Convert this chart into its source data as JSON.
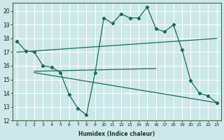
{
  "background_color": "#cce8e8",
  "grid_color": "#b0d4d4",
  "line_color": "#1a6b5a",
  "xlabel": "Humidex (Indice chaleur)",
  "xlim": [
    -0.5,
    23.5
  ],
  "ylim": [
    12,
    20.6
  ],
  "yticks": [
    12,
    13,
    14,
    15,
    16,
    17,
    18,
    19,
    20
  ],
  "xticks": [
    0,
    1,
    2,
    3,
    4,
    5,
    6,
    7,
    8,
    9,
    10,
    11,
    12,
    13,
    14,
    15,
    16,
    17,
    18,
    19,
    20,
    21,
    22,
    23
  ],
  "line1_x": [
    0,
    1,
    2,
    3,
    4,
    5,
    6,
    7,
    8,
    9,
    10,
    11,
    12,
    13,
    14,
    15,
    16,
    17,
    18,
    19,
    20,
    21,
    22,
    23
  ],
  "line1_y": [
    17.8,
    17.1,
    17.0,
    16.0,
    15.9,
    15.5,
    13.9,
    12.9,
    12.4,
    15.5,
    19.5,
    19.1,
    19.8,
    19.5,
    19.5,
    20.3,
    18.7,
    18.5,
    19.0,
    17.2,
    14.9,
    14.0,
    13.8,
    13.3
  ],
  "line2_x": [
    0,
    23
  ],
  "line2_y": [
    17.0,
    18.0
  ],
  "line3_x": [
    2,
    16
  ],
  "line3_y": [
    15.6,
    15.8
  ],
  "line4_x": [
    2,
    23
  ],
  "line4_y": [
    15.5,
    13.3
  ]
}
